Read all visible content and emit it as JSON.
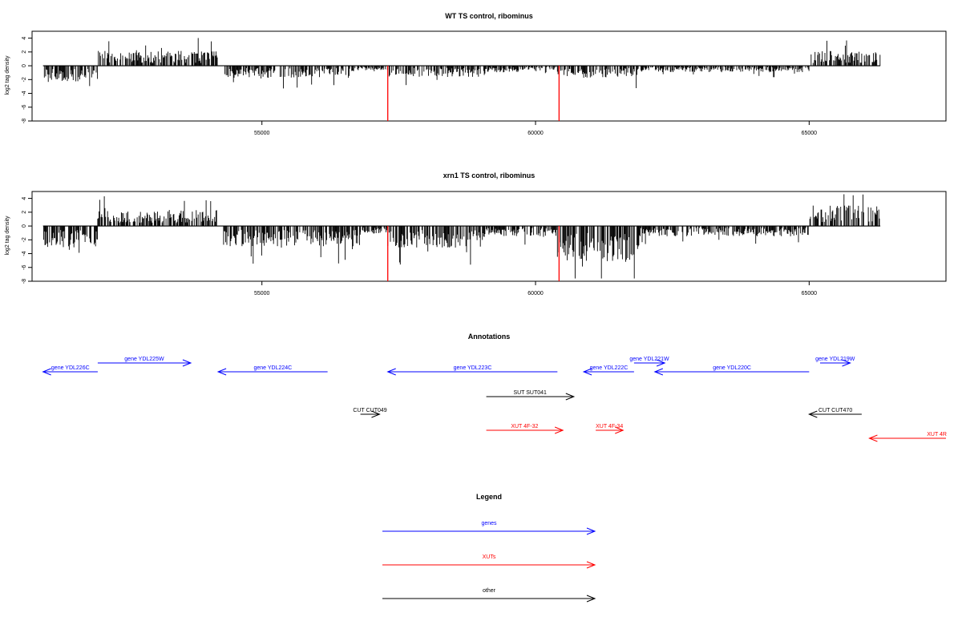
{
  "chart_data": [
    {
      "type": "bar",
      "title": "WT TS control, ribominus",
      "ylabel": "log2 tag density",
      "xlim": [
        50800,
        67500
      ],
      "ylim": [
        -8,
        5
      ],
      "xticks": [
        55000,
        60000,
        65000
      ],
      "yticks": [
        -8,
        -6,
        -4,
        -2,
        0,
        2,
        4
      ],
      "highlight_positions": [
        57300,
        60430
      ],
      "highlight_value": -8,
      "highlight_color": "#ff0000",
      "bar_color": "#000000",
      "segments": [
        {
          "range": [
            51000,
            52000
          ],
          "sign": -1,
          "mean": 1.8
        },
        {
          "range": [
            52000,
            54200
          ],
          "sign": 1,
          "mean": 1.6
        },
        {
          "range": [
            54300,
            56800
          ],
          "sign": -1,
          "mean": 1.3
        },
        {
          "range": [
            56800,
            57300
          ],
          "sign": -1,
          "mean": 0.5
        },
        {
          "range": [
            57300,
            59100
          ],
          "sign": -1,
          "mean": 1.2
        },
        {
          "range": [
            59100,
            60400
          ],
          "sign": -1,
          "mean": 0.7
        },
        {
          "range": [
            60400,
            61900
          ],
          "sign": -1,
          "mean": 1.3
        },
        {
          "range": [
            61900,
            65000
          ],
          "sign": -1,
          "mean": 0.7
        },
        {
          "range": [
            65000,
            66300
          ],
          "sign": 1,
          "mean": 1.6
        }
      ]
    },
    {
      "type": "bar",
      "title": "xrn1 TS control, ribominus",
      "ylabel": "log2 tag density",
      "xlim": [
        50800,
        67500
      ],
      "ylim": [
        -8,
        5
      ],
      "xticks": [
        55000,
        60000,
        65000
      ],
      "yticks": [
        -8,
        -6,
        -4,
        -2,
        0,
        2,
        4
      ],
      "highlight_positions": [
        57300,
        60430
      ],
      "highlight_value": -8,
      "highlight_color": "#ff0000",
      "bar_color": "#000000",
      "segments": [
        {
          "range": [
            51000,
            52000
          ],
          "sign": -1,
          "mean": 2.3
        },
        {
          "range": [
            52000,
            54200
          ],
          "sign": 1,
          "mean": 1.7
        },
        {
          "range": [
            54300,
            56800
          ],
          "sign": -1,
          "mean": 2.2
        },
        {
          "range": [
            56800,
            57300
          ],
          "sign": -1,
          "mean": 0.8
        },
        {
          "range": [
            57300,
            59100
          ],
          "sign": -1,
          "mean": 2.3
        },
        {
          "range": [
            59100,
            60400
          ],
          "sign": -1,
          "mean": 1.1
        },
        {
          "range": [
            60400,
            61900
          ],
          "sign": -1,
          "mean": 3.8
        },
        {
          "range": [
            61900,
            65000
          ],
          "sign": -1,
          "mean": 1.1
        },
        {
          "range": [
            65000,
            66300
          ],
          "sign": 1,
          "mean": 2.2
        }
      ]
    }
  ],
  "annotations": {
    "title": "Annotations",
    "features": [
      {
        "label": "gene YDL226C",
        "start": 51000,
        "end": 52000,
        "dir": "left",
        "kind": "gene",
        "row": 1
      },
      {
        "label": "gene YDL225W",
        "start": 52000,
        "end": 53700,
        "dir": "right",
        "kind": "gene",
        "row": 0
      },
      {
        "label": "gene YDL224C",
        "start": 54200,
        "end": 56200,
        "dir": "left",
        "kind": "gene",
        "row": 1
      },
      {
        "label": "gene YDL223C",
        "start": 57300,
        "end": 60400,
        "dir": "left",
        "kind": "gene",
        "row": 1
      },
      {
        "label": "gene YDL222C",
        "start": 60880,
        "end": 61800,
        "dir": "left",
        "kind": "gene",
        "row": 1
      },
      {
        "label": "gene YDL221W",
        "start": 61800,
        "end": 62360,
        "dir": "right",
        "kind": "gene",
        "row": 0
      },
      {
        "label": "gene YDL220C",
        "start": 62180,
        "end": 65000,
        "dir": "left",
        "kind": "gene",
        "row": 1
      },
      {
        "label": "gene YDL219W",
        "start": 65200,
        "end": 65750,
        "dir": "right",
        "kind": "gene",
        "row": 0
      },
      {
        "label": "SUT SUT041",
        "start": 59100,
        "end": 60700,
        "dir": "right",
        "kind": "other",
        "row": 2
      },
      {
        "label": "CUT CUT049",
        "start": 56800,
        "end": 57150,
        "dir": "right",
        "kind": "other",
        "row": 3
      },
      {
        "label": "CUT CUT470",
        "start": 65000,
        "end": 65960,
        "dir": "left",
        "kind": "other",
        "row": 3
      },
      {
        "label": "XUT 4F-32",
        "start": 59100,
        "end": 60500,
        "dir": "right",
        "kind": "xut",
        "row": 4
      },
      {
        "label": "XUT 4F-34",
        "start": 61100,
        "end": 61600,
        "dir": "right",
        "kind": "xut",
        "row": 4
      },
      {
        "label": "XUT 4R",
        "start": 66100,
        "end": 67500,
        "dir": "left",
        "kind": "xut",
        "row": 5
      }
    ]
  },
  "legend": {
    "title": "Legend",
    "items": [
      {
        "label": "genes",
        "kind": "gene"
      },
      {
        "label": "XUTs",
        "kind": "xut"
      },
      {
        "label": "other",
        "kind": "other"
      }
    ]
  },
  "colors": {
    "gene": "#0000ff",
    "xut": "#ff0000",
    "other": "#000000",
    "axis": "#000000"
  }
}
